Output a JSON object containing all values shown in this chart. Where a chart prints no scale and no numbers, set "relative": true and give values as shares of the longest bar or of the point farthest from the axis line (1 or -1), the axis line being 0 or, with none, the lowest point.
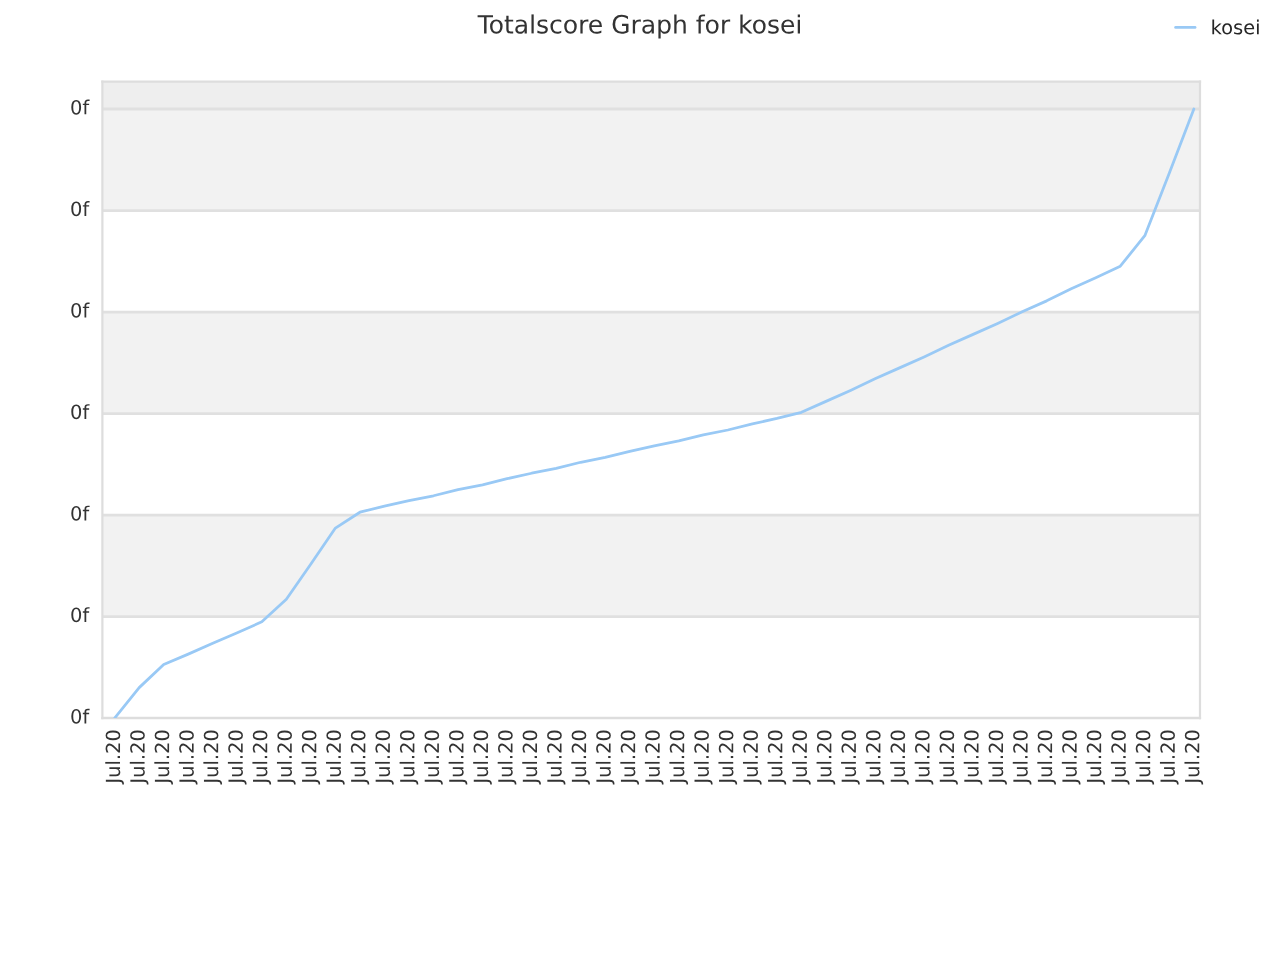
{
  "chart_data": {
    "type": "line",
    "title": "Totalscore Graph for kosei",
    "categories": [
      "Jul.20",
      "Jul.20",
      "Jul.20",
      "Jul.20",
      "Jul.20",
      "Jul.20",
      "Jul.20",
      "Jul.20",
      "Jul.20",
      "Jul.20",
      "Jul.20",
      "Jul.20",
      "Jul.20",
      "Jul.20",
      "Jul.20",
      "Jul.20",
      "Jul.20",
      "Jul.20",
      "Jul.20",
      "Jul.20",
      "Jul.20",
      "Jul.20",
      "Jul.20",
      "Jul.20",
      "Jul.20",
      "Jul.20",
      "Jul.20",
      "Jul.20",
      "Jul.20",
      "Jul.20",
      "Jul.20",
      "Jul.20",
      "Jul.20",
      "Jul.20",
      "Jul.20",
      "Jul.20",
      "Jul.20",
      "Jul.20",
      "Jul.20",
      "Jul.20",
      "Jul.20",
      "Jul.20",
      "Jul.20",
      "Jul.20",
      "Jul.20"
    ],
    "relative": true,
    "series": [
      {
        "name": "kosei",
        "color": "#99c9f5",
        "values": [
          0,
          0.05,
          0.088,
          0.105,
          0.123,
          0.14,
          0.158,
          0.195,
          0.253,
          0.312,
          0.338,
          0.348,
          0.357,
          0.365,
          0.375,
          0.383,
          0.393,
          0.402,
          0.41,
          0.42,
          0.428,
          0.438,
          0.447,
          0.455,
          0.465,
          0.473,
          0.483,
          0.492,
          0.502,
          0.52,
          0.538,
          0.557,
          0.575,
          0.593,
          0.612,
          0.63,
          0.648,
          0.667,
          0.685,
          0.705,
          0.723,
          0.742,
          0.792,
          0.895,
          1
        ]
      }
    ],
    "annotations": [
      "0f",
      "0f",
      "0f",
      "0f",
      "0f",
      "0f",
      "0f"
    ],
    "bands": [
      {
        "axis": "y",
        "from": 0.167,
        "to": 0.333,
        "color": "#f2f2f2"
      },
      {
        "axis": "y",
        "from": 0.5,
        "to": 0.667,
        "color": "#f2f2f2"
      },
      {
        "axis": "y",
        "from": 0.833,
        "to": 1,
        "color": "#f2f2f2"
      },
      {
        "axis": "y",
        "from": 1,
        "to": 1.045,
        "color": "#eeeeee"
      }
    ],
    "grid": "y",
    "legend": "top right",
    "marker": "none",
    "line_style": "solid"
  }
}
